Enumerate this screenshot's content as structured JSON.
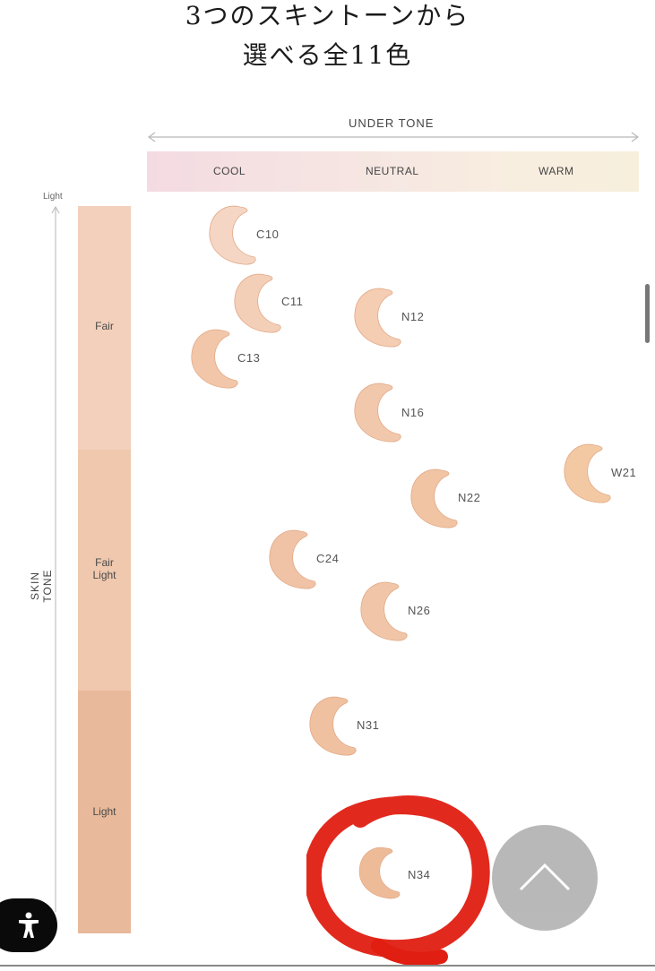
{
  "title": {
    "line1": "3つのスキントーンから",
    "line2": "選べる全11色"
  },
  "under_tone": {
    "label": "UNDER TONE",
    "columns": [
      "COOL",
      "NEUTRAL",
      "WARM"
    ]
  },
  "skin_tone": {
    "axis_label": "SKIN TONE",
    "light_label": "Light",
    "bands": [
      {
        "label_line1": "Fair",
        "label_line2": ""
      },
      {
        "label_line1": "Fair",
        "label_line2": "Light"
      },
      {
        "label_line1": "Light",
        "label_line2": ""
      }
    ]
  },
  "shades": [
    {
      "code": "C10",
      "color": "#f5d6c4"
    },
    {
      "code": "C11",
      "color": "#f4cfb8"
    },
    {
      "code": "N12",
      "color": "#f4cdb3"
    },
    {
      "code": "C13",
      "color": "#f2c7a9"
    },
    {
      "code": "N16",
      "color": "#f2c8ac"
    },
    {
      "code": "W21",
      "color": "#f3c9a3"
    },
    {
      "code": "N22",
      "color": "#f1c4a4"
    },
    {
      "code": "C24",
      "color": "#f0c3a6"
    },
    {
      "code": "N26",
      "color": "#f1c6a8"
    },
    {
      "code": "N31",
      "color": "#efc1a0"
    },
    {
      "code": "N34",
      "color": "#edbb98"
    }
  ],
  "colors": {
    "highlight": "#e01e12",
    "scroll_top_button": "#b5b5b5",
    "accessibility_button": "#0a0a0a"
  },
  "icons": {
    "accessibility": "accessibility-person-icon",
    "scroll_top": "chevron-up-icon"
  }
}
